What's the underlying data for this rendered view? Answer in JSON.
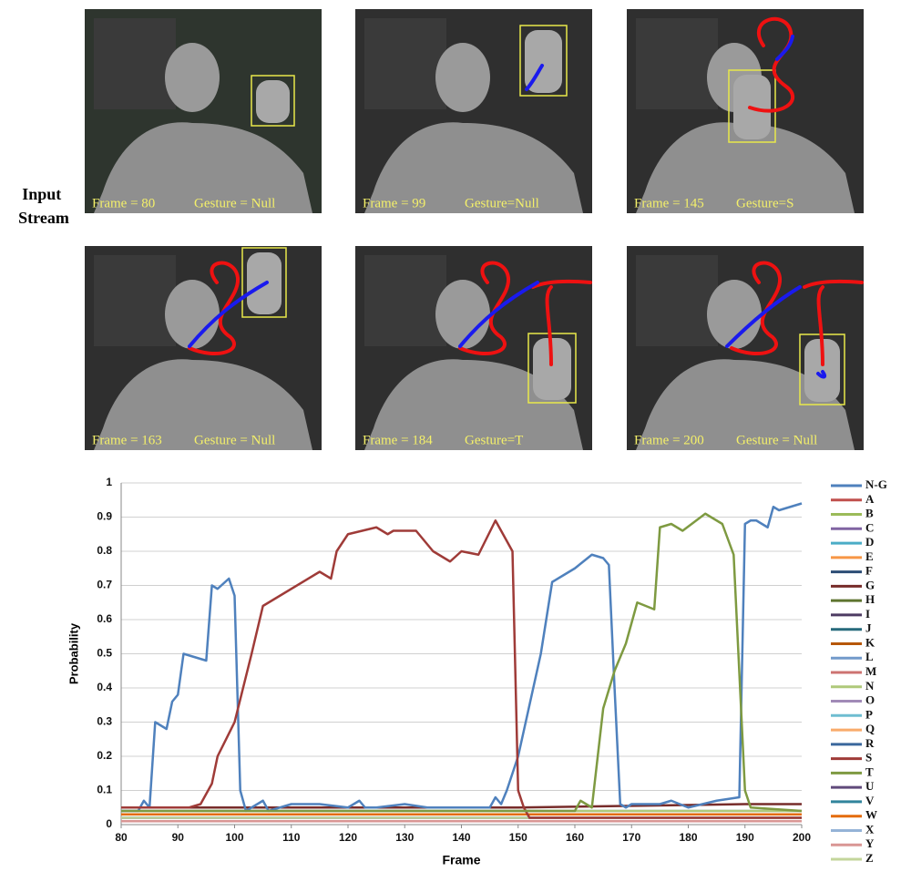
{
  "input_label": "Input Stream",
  "panels": [
    {
      "frame": "Frame = 80",
      "gesture": "Gesture = Null"
    },
    {
      "frame": "Frame = 99",
      "gesture": "Gesture=Null"
    },
    {
      "frame": "Frame = 145",
      "gesture": "Gesture=S"
    },
    {
      "frame": "Frame = 163",
      "gesture": "Gesture = Null"
    },
    {
      "frame": "Frame = 184",
      "gesture": "Gesture=T"
    },
    {
      "frame": "Frame = 200",
      "gesture": "Gesture = Null"
    }
  ],
  "chart_data": {
    "type": "line",
    "x_label": "Frame",
    "y_label": "Probability",
    "xlim": [
      80,
      200
    ],
    "xticks": [
      80,
      90,
      100,
      110,
      120,
      130,
      140,
      150,
      160,
      170,
      180,
      190,
      200
    ],
    "ylim": [
      0,
      1
    ],
    "yticks": [
      0,
      0.1,
      0.2,
      0.3,
      0.4,
      0.5,
      0.6,
      0.7,
      0.8,
      0.9,
      1
    ],
    "grid": true,
    "legend": "right",
    "series": [
      {
        "name": "N-G",
        "color": "#4f81bd",
        "x": [
          80,
          83,
          84,
          85,
          86,
          88,
          89,
          90,
          91,
          93,
          95,
          96,
          97,
          99,
          100,
          101,
          102,
          103,
          105,
          106,
          110,
          115,
          120,
          122,
          123,
          125,
          130,
          134,
          145,
          146,
          147,
          148,
          150,
          152,
          154,
          156,
          158,
          160,
          163,
          165,
          166,
          167,
          168,
          169,
          170,
          175,
          177,
          180,
          185,
          189,
          190,
          191,
          192,
          194,
          195,
          196,
          198,
          200
        ],
        "values": [
          0.04,
          0.04,
          0.07,
          0.05,
          0.3,
          0.28,
          0.36,
          0.38,
          0.5,
          0.49,
          0.48,
          0.7,
          0.69,
          0.72,
          0.67,
          0.1,
          0.04,
          0.05,
          0.07,
          0.04,
          0.06,
          0.06,
          0.05,
          0.07,
          0.05,
          0.05,
          0.06,
          0.05,
          0.05,
          0.08,
          0.06,
          0.1,
          0.2,
          0.35,
          0.5,
          0.71,
          0.73,
          0.75,
          0.79,
          0.78,
          0.76,
          0.4,
          0.06,
          0.05,
          0.06,
          0.06,
          0.07,
          0.05,
          0.07,
          0.08,
          0.88,
          0.89,
          0.89,
          0.87,
          0.93,
          0.92,
          0.93,
          0.94
        ]
      },
      {
        "name": "A",
        "color": "#c0504d",
        "x": [
          80,
          200
        ],
        "values": [
          0.02,
          0.02
        ]
      },
      {
        "name": "B",
        "color": "#9bbb59",
        "x": [
          80,
          200
        ],
        "values": [
          0.03,
          0.03
        ]
      },
      {
        "name": "C",
        "color": "#8064a2",
        "x": [
          80,
          200
        ],
        "values": [
          0.02,
          0.02
        ]
      },
      {
        "name": "D",
        "color": "#4bacc6",
        "x": [
          80,
          200
        ],
        "values": [
          0.03,
          0.03
        ]
      },
      {
        "name": "E",
        "color": "#f79646",
        "x": [
          80,
          200
        ],
        "values": [
          0.01,
          0.01
        ]
      },
      {
        "name": "F",
        "color": "#2c4d75",
        "x": [
          80,
          200
        ],
        "values": [
          0.02,
          0.02
        ]
      },
      {
        "name": "G",
        "color": "#772c2a",
        "x": [
          80,
          150,
          190,
          200
        ],
        "values": [
          0.05,
          0.05,
          0.06,
          0.06
        ]
      },
      {
        "name": "H",
        "color": "#5f7530",
        "x": [
          80,
          200
        ],
        "values": [
          0.01,
          0.01
        ]
      },
      {
        "name": "I",
        "color": "#4d3b62",
        "x": [
          80,
          200
        ],
        "values": [
          0.02,
          0.02
        ]
      },
      {
        "name": "J",
        "color": "#276a7c",
        "x": [
          80,
          200
        ],
        "values": [
          0.03,
          0.03
        ]
      },
      {
        "name": "K",
        "color": "#b65708",
        "x": [
          80,
          200
        ],
        "values": [
          0.02,
          0.02
        ]
      },
      {
        "name": "L",
        "color": "#729aca",
        "x": [
          80,
          200
        ],
        "values": [
          0.04,
          0.04
        ]
      },
      {
        "name": "M",
        "color": "#cd7371",
        "x": [
          80,
          200
        ],
        "values": [
          0.03,
          0.03
        ]
      },
      {
        "name": "N",
        "color": "#afc97a",
        "x": [
          80,
          200
        ],
        "values": [
          0.04,
          0.04
        ]
      },
      {
        "name": "O",
        "color": "#a18ab7",
        "x": [
          80,
          200
        ],
        "values": [
          0.02,
          0.02
        ]
      },
      {
        "name": "P",
        "color": "#6fbdd1",
        "x": [
          80,
          200
        ],
        "values": [
          0.03,
          0.03
        ]
      },
      {
        "name": "Q",
        "color": "#f9ab6b",
        "x": [
          80,
          200
        ],
        "values": [
          0.02,
          0.02
        ]
      },
      {
        "name": "R",
        "color": "#3a679c",
        "x": [
          80,
          200
        ],
        "values": [
          0.02,
          0.02
        ]
      },
      {
        "name": "S",
        "color": "#9f3b38",
        "x": [
          80,
          92,
          94,
          96,
          97,
          100,
          103,
          105,
          115,
          117,
          118,
          120,
          125,
          127,
          128,
          132,
          135,
          138,
          140,
          143,
          146,
          149,
          150,
          151,
          152,
          200
        ],
        "values": [
          0.05,
          0.05,
          0.06,
          0.12,
          0.2,
          0.3,
          0.5,
          0.64,
          0.74,
          0.72,
          0.8,
          0.85,
          0.87,
          0.85,
          0.86,
          0.86,
          0.8,
          0.77,
          0.8,
          0.79,
          0.89,
          0.8,
          0.1,
          0.05,
          0.02,
          0.02
        ]
      },
      {
        "name": "T",
        "color": "#7e9a41",
        "x": [
          80,
          160,
          161,
          163,
          165,
          167,
          169,
          171,
          174,
          175,
          177,
          179,
          183,
          186,
          188,
          190,
          191,
          200
        ],
        "values": [
          0.04,
          0.04,
          0.07,
          0.05,
          0.34,
          0.45,
          0.53,
          0.65,
          0.63,
          0.87,
          0.88,
          0.86,
          0.91,
          0.88,
          0.79,
          0.1,
          0.05,
          0.04
        ]
      },
      {
        "name": "U",
        "color": "#604a7b",
        "x": [
          80,
          200
        ],
        "values": [
          0.02,
          0.02
        ]
      },
      {
        "name": "V",
        "color": "#31859c",
        "x": [
          80,
          200
        ],
        "values": [
          0.03,
          0.03
        ]
      },
      {
        "name": "W",
        "color": "#e46c0a",
        "x": [
          80,
          200
        ],
        "values": [
          0.03,
          0.03
        ]
      },
      {
        "name": "X",
        "color": "#95b3d7",
        "x": [
          80,
          200
        ],
        "values": [
          0.02,
          0.02
        ]
      },
      {
        "name": "Y",
        "color": "#d99694",
        "x": [
          80,
          200
        ],
        "values": [
          0.01,
          0.01
        ]
      },
      {
        "name": "Z",
        "color": "#c3d69b",
        "x": [
          80,
          200
        ],
        "values": [
          0.02,
          0.02
        ]
      }
    ]
  }
}
